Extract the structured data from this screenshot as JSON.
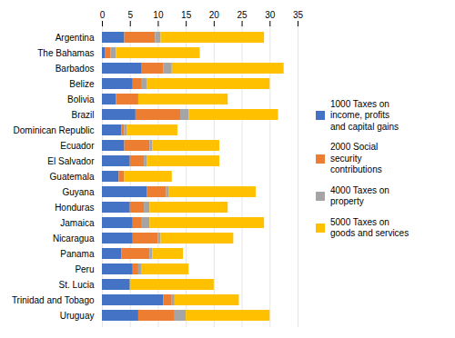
{
  "chart_data": {
    "type": "bar",
    "orientation": "horizontal",
    "stacked": true,
    "categories": [
      "Argentina",
      "The Bahamas",
      "Barbados",
      "Belize",
      "Bolivia",
      "Brazil",
      "Dominican Republic",
      "Ecuador",
      "El Salvador",
      "Guatemala",
      "Guyana",
      "Honduras",
      "Jamaica",
      "Nicaragua",
      "Panama",
      "Peru",
      "St. Lucia",
      "Trinidad and Tobago",
      "Uruguay"
    ],
    "series": [
      {
        "name": "1000 Taxes on\nincome, profits\nand capital gains",
        "color": "#4472C4",
        "values": [
          4.0,
          0.5,
          7.0,
          5.5,
          2.5,
          6.0,
          3.5,
          4.0,
          5.0,
          3.0,
          8.0,
          5.0,
          5.5,
          5.5,
          3.5,
          5.5,
          5.0,
          11.0,
          6.5
        ]
      },
      {
        "name": "2000 Social\nsecurity\ncontributions",
        "color": "#ED7D31",
        "values": [
          5.5,
          1.0,
          4.0,
          1.5,
          4.0,
          8.0,
          0.5,
          4.5,
          2.5,
          1.0,
          3.5,
          2.5,
          1.5,
          4.5,
          5.0,
          1.0,
          0.0,
          1.5,
          6.5
        ]
      },
      {
        "name": "4000 Taxes on\nproperty",
        "color": "#A5A5A5",
        "values": [
          1.0,
          1.0,
          1.5,
          1.0,
          0.0,
          1.5,
          0.5,
          0.5,
          0.5,
          0.0,
          0.5,
          1.0,
          1.5,
          0.5,
          0.5,
          0.5,
          0.0,
          0.5,
          2.0
        ]
      },
      {
        "name": "5000 Taxes on\ngoods and services",
        "color": "#FFC000",
        "values": [
          18.5,
          15.0,
          20.0,
          22.0,
          16.0,
          16.0,
          9.0,
          12.0,
          13.0,
          8.5,
          15.5,
          14.0,
          20.5,
          13.0,
          5.5,
          8.5,
          15.0,
          11.5,
          15.0
        ]
      }
    ],
    "xlim": [
      0,
      35
    ],
    "xticks": [
      0,
      5,
      10,
      15,
      20,
      25,
      30,
      35
    ],
    "grid": true,
    "legend": "right"
  }
}
